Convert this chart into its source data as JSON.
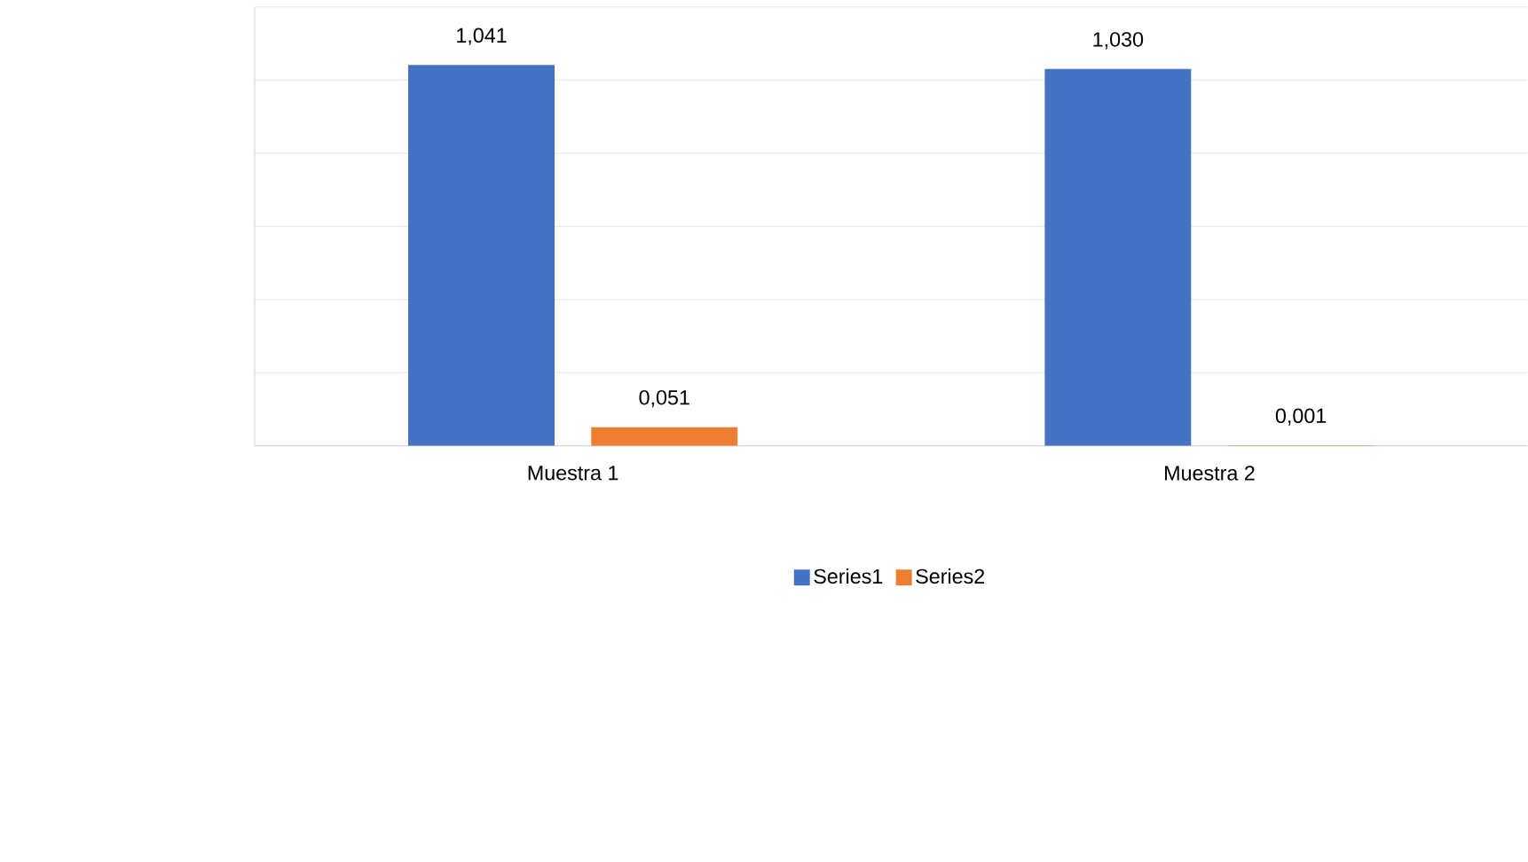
{
  "chart_data": {
    "type": "bar",
    "categories": [
      "Muestra 1",
      "Muestra 2"
    ],
    "series": [
      {
        "name": "Series1",
        "color": "#4472c4",
        "values": [
          1.041,
          1.03
        ],
        "value_labels": [
          "1,041",
          "1,030"
        ]
      },
      {
        "name": "Series2",
        "color": "#ed7d31",
        "values": [
          0.051,
          0.001
        ],
        "value_labels": [
          "0,051",
          "0,001"
        ]
      }
    ],
    "ylim": [
      0,
      1.2
    ],
    "yticks": [
      {
        "value": 0,
        "label": null
      },
      {
        "value": 0.2,
        "label": null
      },
      {
        "value": 0.4,
        "label": null
      },
      {
        "value": 0.6,
        "label": null
      },
      {
        "value": 0.8,
        "label": null
      },
      {
        "value": 1.0,
        "label": null
      },
      {
        "value": 1.2,
        "label": null
      }
    ],
    "tick_labels": "x",
    "grid": "y",
    "legend": "bottom"
  }
}
